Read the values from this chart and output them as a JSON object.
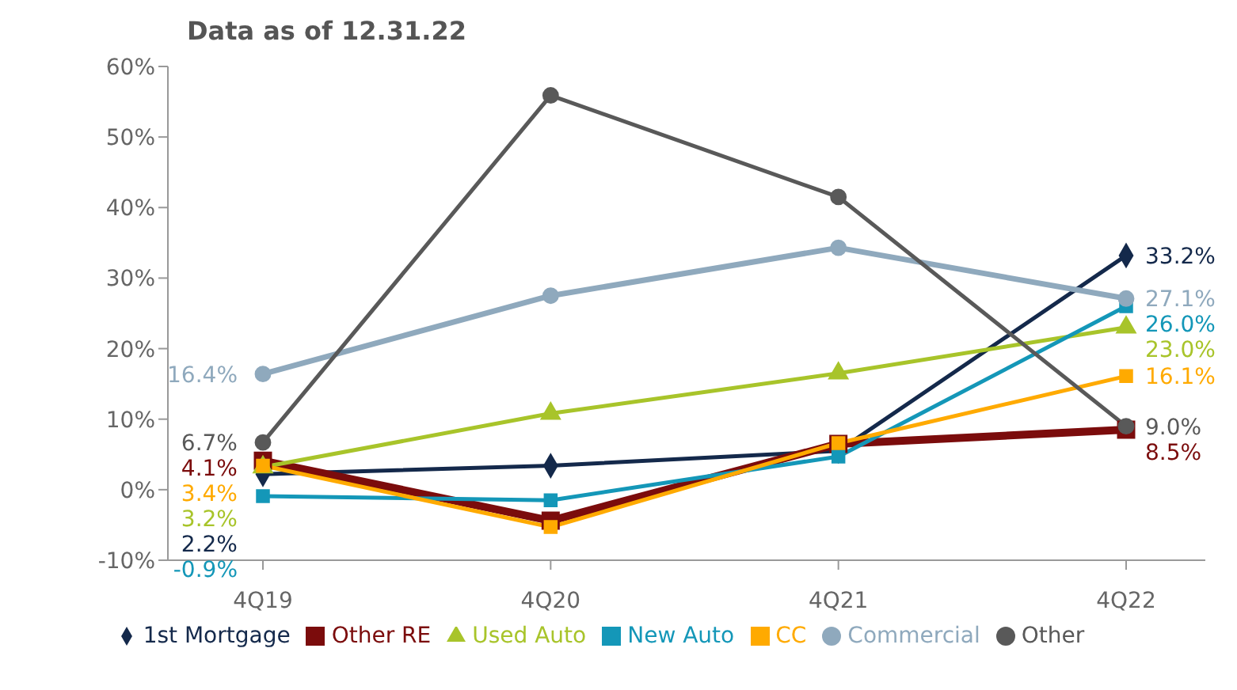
{
  "chart_data": {
    "type": "line",
    "title": "Data as of 12.31.22",
    "categories": [
      "4Q19",
      "4Q20",
      "4Q21",
      "4Q22"
    ],
    "ylim": [
      -10,
      60
    ],
    "yticks": [
      {
        "value": -10,
        "label": "-10%"
      },
      {
        "value": 0,
        "label": "0%"
      },
      {
        "value": 10,
        "label": "10%"
      },
      {
        "value": 20,
        "label": "20%"
      },
      {
        "value": 30,
        "label": "30%"
      },
      {
        "value": 40,
        "label": "40%"
      },
      {
        "value": 50,
        "label": "50%"
      },
      {
        "value": 60,
        "label": "60%"
      }
    ],
    "grid": false,
    "legend": "bottom",
    "line_style": "solid",
    "series": [
      {
        "name": "1st Mortgage",
        "color": "#14294b",
        "marker": "diamond",
        "values": [
          2.2,
          3.4,
          5.5,
          33.2
        ],
        "value_labels": [
          "2.2%",
          null,
          null,
          "33.2%"
        ]
      },
      {
        "name": "Other RE",
        "color": "#7b0c0c",
        "marker": "square",
        "values": [
          4.1,
          -4.4,
          6.5,
          8.5
        ],
        "value_labels": [
          "4.1%",
          null,
          null,
          "8.5%"
        ]
      },
      {
        "name": "Used Auto",
        "color": "#a8c42a",
        "marker": "triangle",
        "values": [
          3.2,
          10.8,
          16.5,
          23.0
        ],
        "value_labels": [
          "3.2%",
          null,
          null,
          "23.0%"
        ]
      },
      {
        "name": "New Auto",
        "color": "#1497b8",
        "marker": "square",
        "values": [
          -0.9,
          -1.5,
          4.7,
          26.0
        ],
        "value_labels": [
          "-0.9%",
          null,
          null,
          "26.0%"
        ]
      },
      {
        "name": "CC",
        "color": "#ffaa00",
        "marker": "square",
        "values": [
          3.4,
          -5.3,
          6.6,
          16.1
        ],
        "value_labels": [
          "3.4%",
          null,
          null,
          "16.1%"
        ]
      },
      {
        "name": "Commercial",
        "color": "#8fa9bd",
        "marker": "circle",
        "values": [
          16.4,
          27.5,
          34.3,
          27.1
        ],
        "value_labels": [
          "16.4%",
          null,
          null,
          "27.1%"
        ]
      },
      {
        "name": "Other",
        "color": "#595959",
        "marker": "circle",
        "values": [
          6.7,
          55.9,
          41.5,
          9.0
        ],
        "value_labels": [
          "6.7%",
          null,
          null,
          "9.0%"
        ]
      }
    ]
  }
}
